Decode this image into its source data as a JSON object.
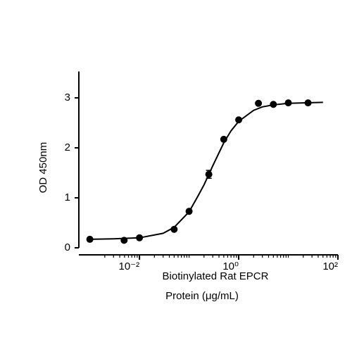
{
  "chart_data": {
    "type": "scatter",
    "x_label": [
      "Biotinylated Rat EPCR",
      "Protein (μg/mL)"
    ],
    "y_label": "OD 450nm",
    "xscale": "log",
    "xlim": [
      0.0006,
      100
    ],
    "ylim": [
      0,
      3.5
    ],
    "xticks": [
      {
        "value": 0.01,
        "label": "10⁻²"
      },
      {
        "value": 1,
        "label": "10⁰"
      },
      {
        "value": 100,
        "label": "10²"
      }
    ],
    "xminorticks": [
      0.002,
      0.003,
      0.004,
      0.005,
      0.006,
      0.007,
      0.008,
      0.009,
      0.02,
      0.03,
      0.04,
      0.05,
      0.06,
      0.07,
      0.08,
      0.09,
      0.1,
      0.2,
      0.3,
      0.4,
      0.5,
      0.6,
      0.7,
      0.8,
      0.9,
      2,
      3,
      4,
      5,
      6,
      7,
      8,
      9,
      10,
      20,
      30,
      40,
      50,
      60,
      70,
      80,
      90
    ],
    "yticks": [
      0,
      1,
      2,
      3
    ],
    "series": [
      {
        "color": "#000000",
        "marker": "circle",
        "x": [
          0.001,
          0.0049,
          0.01,
          0.05,
          0.1,
          0.25,
          0.5,
          1,
          2.5,
          5,
          10,
          25
        ],
        "values": [
          0.17,
          0.15,
          0.2,
          0.37,
          0.73,
          1.47,
          2.17,
          2.56,
          2.89,
          2.87,
          2.9,
          2.9
        ],
        "errors": [
          null,
          null,
          null,
          null,
          null,
          0.08,
          null,
          null,
          null,
          null,
          null,
          null
        ]
      },
      {
        "color": "#000000",
        "marker": "line",
        "x": [
          0.001,
          0.003,
          0.01,
          0.03,
          0.05,
          0.1,
          0.15,
          0.2,
          0.3,
          0.5,
          0.7,
          1,
          2,
          3,
          5,
          10,
          50
        ],
        "values": [
          0.17,
          0.18,
          0.2,
          0.29,
          0.41,
          0.72,
          1.03,
          1.26,
          1.64,
          2.1,
          2.34,
          2.53,
          2.75,
          2.82,
          2.86,
          2.89,
          2.91
        ]
      }
    ]
  }
}
